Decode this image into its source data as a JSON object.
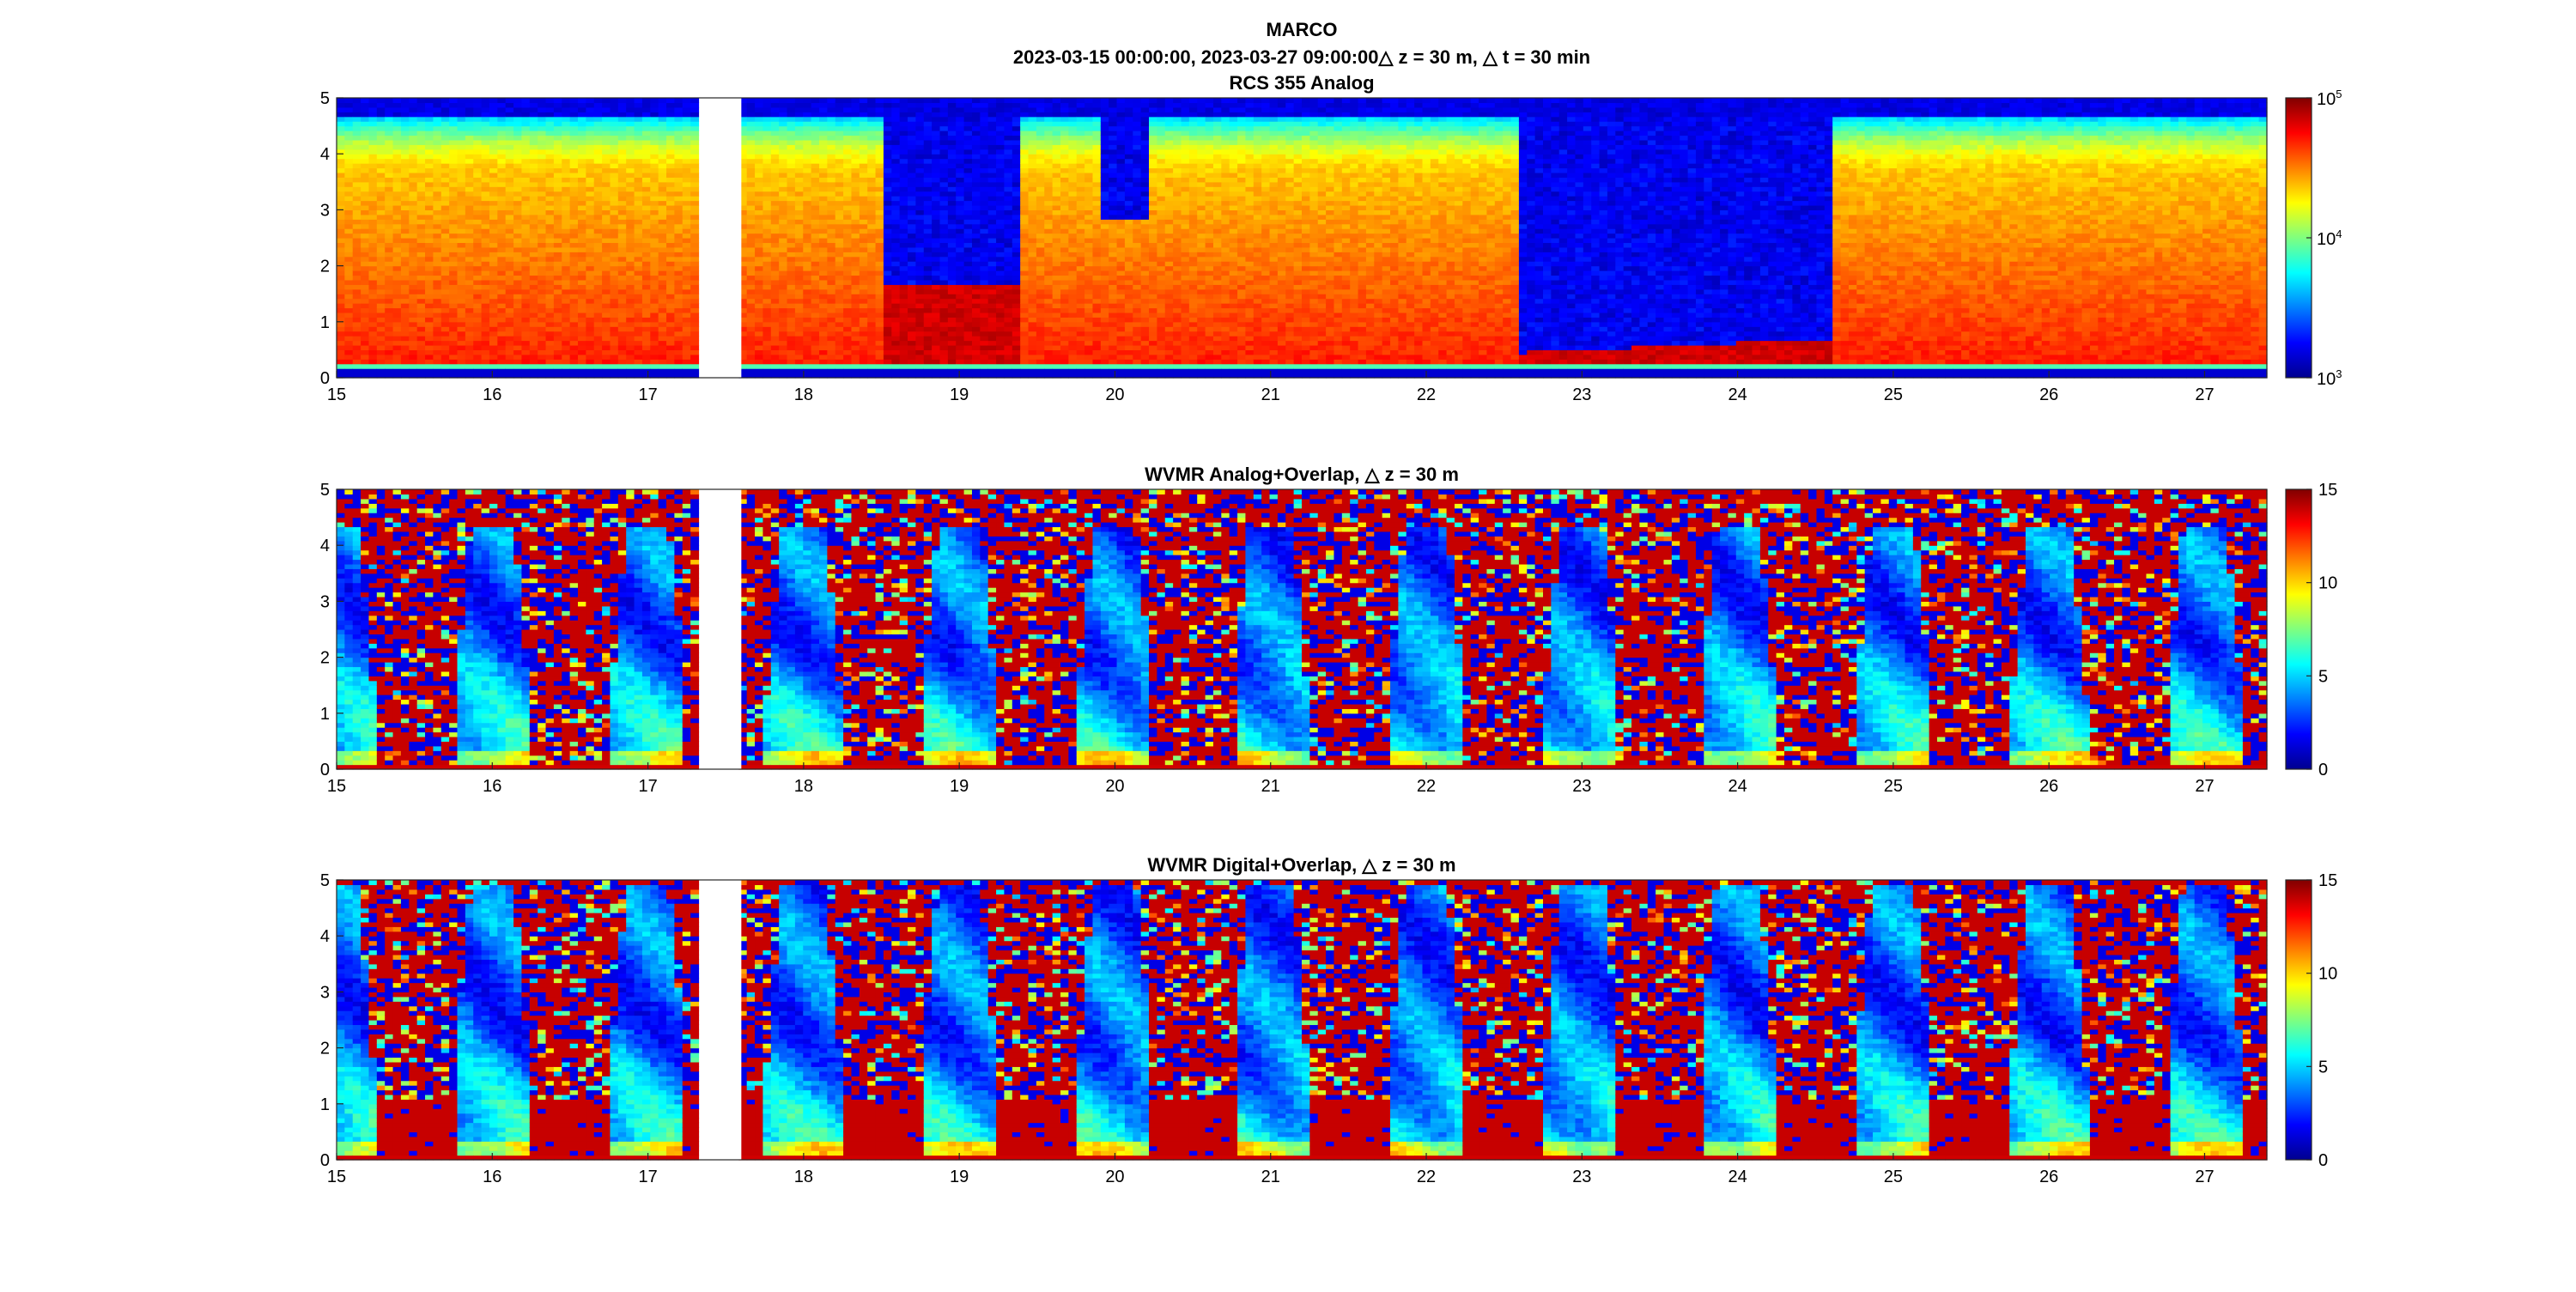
{
  "figure": {
    "title_lines": [
      "MARCO",
      "2023-03-15 00:00:00, 2023-03-27 09:00:00△ z = 30 m, △ t = 30 min"
    ]
  },
  "chart_data": [
    {
      "type": "heatmap",
      "title": "RCS 355 Analog",
      "xlabel": "",
      "ylabel": "",
      "x_ticks": [
        "15",
        "16",
        "17",
        "18",
        "19",
        "20",
        "21",
        "22",
        "23",
        "24",
        "25",
        "26",
        "27"
      ],
      "y_ticks": [
        "0",
        "1",
        "2",
        "3",
        "4",
        "5"
      ],
      "xlim": [
        15.0,
        27.4
      ],
      "ylim": [
        0,
        5
      ],
      "x_unit_note": "day of March 2023",
      "data_gap": [
        17.35,
        17.6
      ],
      "colormap": "jet",
      "colorbar": {
        "scale": "log",
        "range": [
          1000,
          100000
        ],
        "ticks": [
          {
            "base": "10",
            "exp": "3"
          },
          {
            "base": "10",
            "exp": "4"
          },
          {
            "base": "10",
            "exp": "5"
          }
        ]
      },
      "colors": {
        "low": "#00008f",
        "high": "#800000"
      }
    },
    {
      "type": "heatmap",
      "title": "WVMR Analog+Overlap, △ z = 30 m",
      "xlabel": "",
      "ylabel": "",
      "x_ticks": [
        "15",
        "16",
        "17",
        "18",
        "19",
        "20",
        "21",
        "22",
        "23",
        "24",
        "25",
        "26",
        "27"
      ],
      "y_ticks": [
        "0",
        "1",
        "2",
        "3",
        "4",
        "5"
      ],
      "xlim": [
        15.0,
        27.4
      ],
      "ylim": [
        0,
        5
      ],
      "data_gap": [
        17.35,
        17.6
      ],
      "colormap": "jet",
      "colorbar": {
        "scale": "linear",
        "range": [
          0,
          15
        ],
        "ticks": [
          "0",
          "5",
          "10",
          "15"
        ]
      }
    },
    {
      "type": "heatmap",
      "title": "WVMR Digital+Overlap, △ z = 30 m",
      "xlabel": "",
      "ylabel": "",
      "x_ticks": [
        "15",
        "16",
        "17",
        "18",
        "19",
        "20",
        "21",
        "22",
        "23",
        "24",
        "25",
        "26",
        "27"
      ],
      "y_ticks": [
        "0",
        "1",
        "2",
        "3",
        "4",
        "5"
      ],
      "xlim": [
        15.0,
        27.4
      ],
      "ylim": [
        0,
        5
      ],
      "data_gap": [
        17.35,
        17.6
      ],
      "colormap": "jet",
      "colorbar": {
        "scale": "linear",
        "range": [
          0,
          15
        ],
        "ticks": [
          "0",
          "5",
          "10",
          "15"
        ]
      }
    }
  ]
}
